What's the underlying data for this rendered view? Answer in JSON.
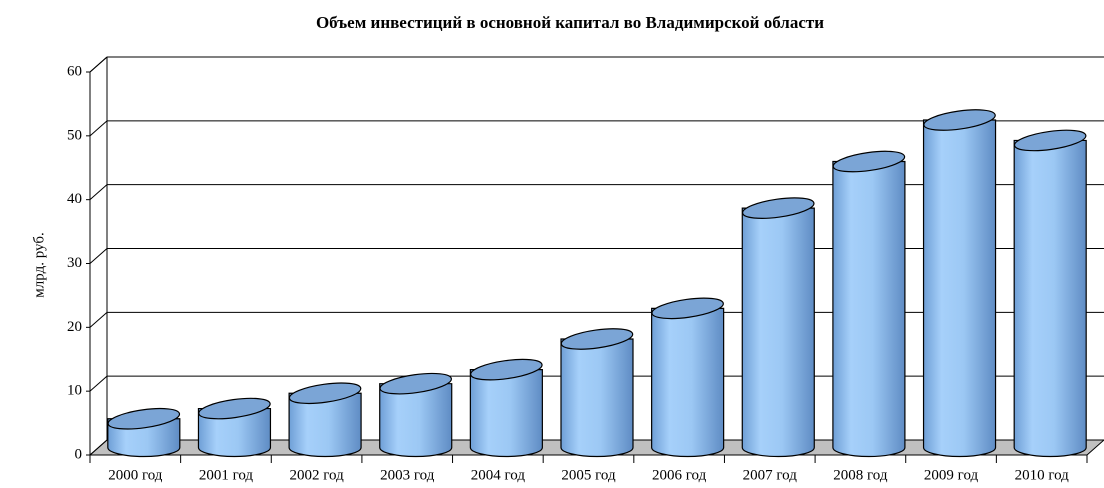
{
  "chart_data": {
    "type": "bar",
    "title": "Объем инвестиций в основной капитал во Владимирской области",
    "y_label": "млрд. руб.",
    "categories": [
      "2000 год",
      "2001 год",
      "2002 год",
      "2003 год",
      "2004 год",
      "2005 год",
      "2006 год",
      "2007 год",
      "2008 год",
      "2009 год",
      "2010 год"
    ],
    "values": [
      4.5,
      6.1,
      8.5,
      10,
      12.2,
      17,
      21.8,
      37.5,
      44.8,
      51.3,
      48.1
    ],
    "color": "#99c6f2",
    "ylim": [
      0,
      60
    ],
    "yticks": [
      0,
      10,
      20,
      30,
      40,
      50,
      60
    ],
    "grid": true
  }
}
